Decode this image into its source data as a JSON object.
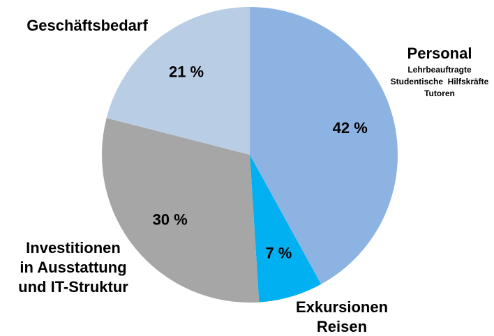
{
  "chart_data": {
    "type": "pie",
    "categories": [
      [
        "Personal"
      ],
      [
        "Exkursionen",
        "Reisen"
      ],
      [
        "Investitionen",
        "in Ausstattung",
        "und IT-Struktur"
      ],
      [
        "Geschäftsbedarf"
      ]
    ],
    "annotations": [
      "Lehrbeauftragte",
      "Studentische  Hilfskräfte",
      "Tutoren"
    ],
    "values": [
      42,
      7,
      30,
      21
    ],
    "value_labels": [
      "42 %",
      "7 %",
      "30 %",
      "21 %"
    ],
    "colors": [
      "#8db3e2",
      "#00b0f0",
      "#a6a6a6",
      "#b9cde5"
    ]
  }
}
